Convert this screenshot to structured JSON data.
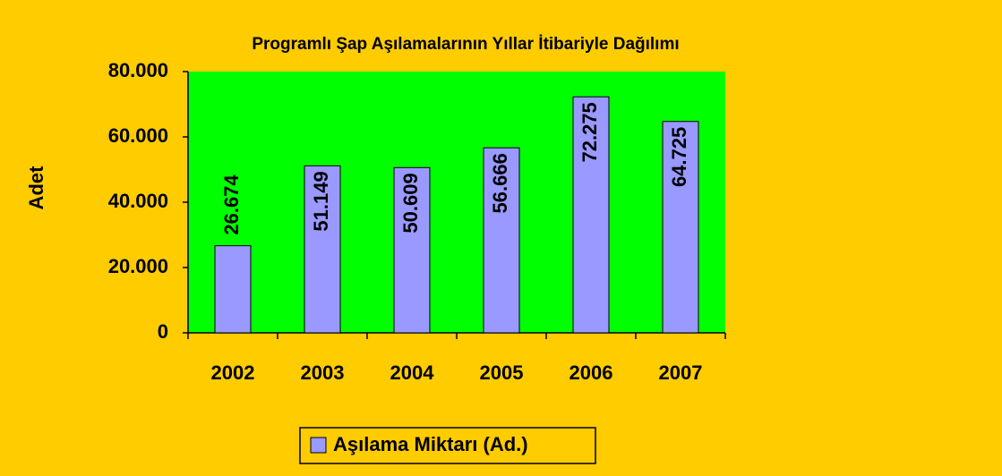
{
  "chart_data": {
    "type": "bar",
    "title": "Programlı Şap Aşılamalarının Yıllar İtibariyle Dağılımı",
    "y_label": "Adet",
    "categories": [
      "2002",
      "2003",
      "2004",
      "2005",
      "2006",
      "2007"
    ],
    "series": [
      {
        "name": "Aşılama Miktarı (Ad.)",
        "color": "#9999ff",
        "values": [
          26674,
          51149,
          50609,
          56666,
          72275,
          64725
        ],
        "value_labels": [
          "26.674",
          "51.149",
          "50.609",
          "56.666",
          "72.275",
          "64.725"
        ]
      }
    ],
    "ylim": [
      0,
      80000
    ],
    "yticks": [
      0,
      {
        "value": 20000,
        "label": "20.000"
      },
      {
        "value": 40000,
        "label": "40.000"
      },
      {
        "value": 60000,
        "label": "60.000"
      },
      {
        "value": 80000,
        "label": "80.000"
      }
    ],
    "plot_background": "#00ff00",
    "background": "#ffcc00",
    "legend": "bottom"
  }
}
